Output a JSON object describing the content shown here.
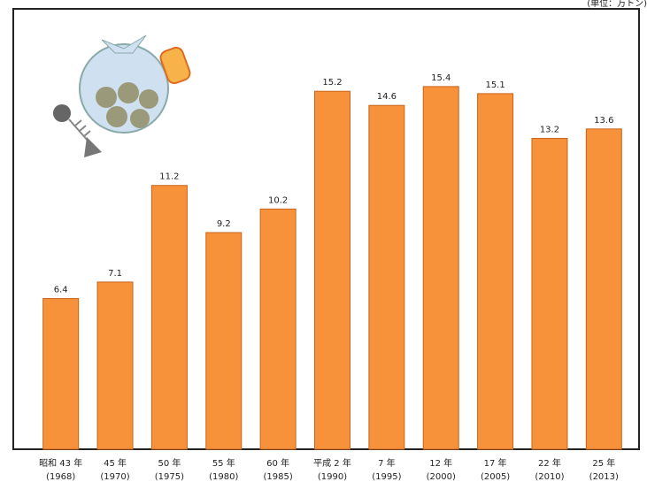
{
  "chart_data": {
    "type": "bar",
    "unit": "(単位：万トン)",
    "categories": [
      "昭和 43 年",
      "45 年",
      "50 年",
      "55 年",
      "60 年",
      "平成 2 年",
      "7 年",
      "12 年",
      "17 年",
      "22 年",
      "25 年"
    ],
    "years": [
      "(1968)",
      "(1970)",
      "(1975)",
      "(1980)",
      "(1985)",
      "(1990)",
      "(1995)",
      "(2000)",
      "(2005)",
      "(2010)",
      "(2013)"
    ],
    "values": [
      6.4,
      7.1,
      11.2,
      9.2,
      10.2,
      15.2,
      14.6,
      15.4,
      15.1,
      13.2,
      13.6
    ],
    "value_labels": [
      "6.4",
      "7.1",
      "11.2",
      "9.2",
      "10.2",
      "15.2",
      "14.6",
      "15.4",
      "15.1",
      "13.2",
      "13.6"
    ],
    "color": "#f7923a",
    "ylim": [
      0,
      18.7
    ]
  }
}
